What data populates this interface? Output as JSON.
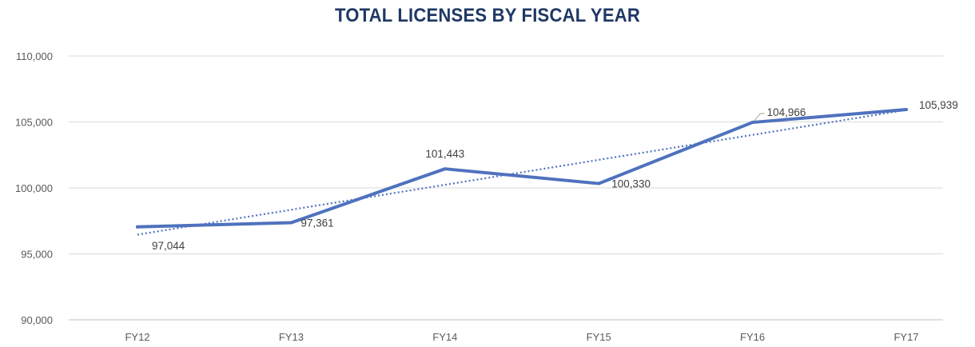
{
  "chart_data": {
    "type": "line",
    "title": "TOTAL LICENSES BY FISCAL YEAR",
    "categories": [
      "FY12",
      "FY13",
      "FY14",
      "FY15",
      "FY16",
      "FY17"
    ],
    "series": [
      {
        "values": [
          97044,
          97361,
          101443,
          100330,
          104966,
          105939
        ],
        "data_labels": [
          "97,044",
          "97,361",
          "101,443",
          "100,330",
          "104,966",
          "105,939"
        ],
        "color": "#4f72be"
      }
    ],
    "trendline": {
      "type": "linear",
      "style": "dotted",
      "color": "#4f72be"
    },
    "ylim": [
      90000,
      110000
    ],
    "yticks": [
      90000,
      95000,
      100000,
      105000,
      110000
    ],
    "ytick_labels": [
      "90,000",
      "95,000",
      "100,000",
      "105,000",
      "110,000"
    ],
    "grid": true,
    "xlabel": "",
    "ylabel": ""
  }
}
